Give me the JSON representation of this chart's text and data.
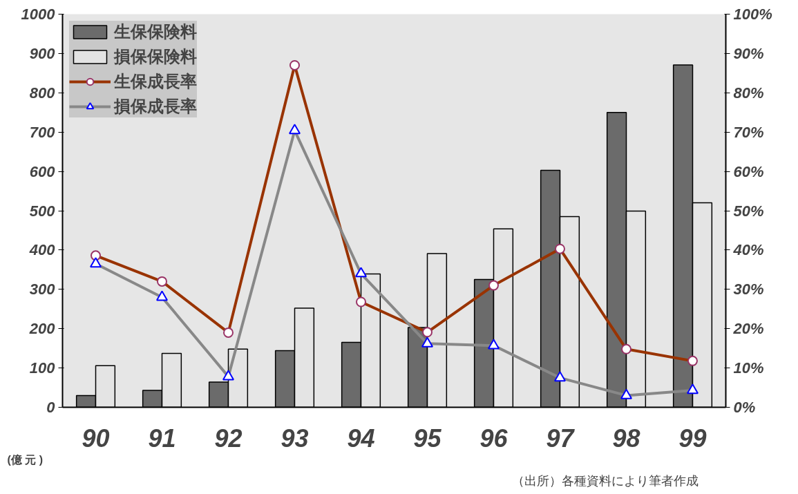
{
  "chart_data": {
    "type": "bar",
    "categories": [
      "90",
      "91",
      "92",
      "93",
      "94",
      "95",
      "96",
      "97",
      "98",
      "99"
    ],
    "series": [
      {
        "name": "生保保険料",
        "color": "#6b6b6b",
        "values": [
          30,
          43,
          64,
          144,
          165,
          203,
          325,
          603,
          750,
          871
        ]
      },
      {
        "name": "損保保険料",
        "color": "#e4e4e4",
        "values": [
          106,
          137,
          148,
          252,
          339,
          391,
          454,
          485,
          499,
          520
        ]
      },
      {
        "name": "生保成長率",
        "type": "line",
        "axis": "y2",
        "color": "#993300",
        "marker": "circle",
        "values": [
          38.6,
          32,
          19,
          87,
          26.8,
          19.1,
          31,
          40.3,
          14.8,
          11.8
        ]
      },
      {
        "name": "損保成長率",
        "type": "line",
        "axis": "y2",
        "color": "#888888",
        "marker": "triangle",
        "values": [
          36.5,
          28,
          7.8,
          70.4,
          34,
          16.2,
          15.7,
          7.5,
          3,
          4.3
        ]
      }
    ],
    "ylabel": "(億 元 )",
    "ylim": [
      0,
      1000
    ],
    "yticks": [
      0,
      100,
      200,
      300,
      400,
      500,
      600,
      700,
      800,
      900,
      1000
    ],
    "y2lim": [
      0,
      100
    ],
    "y2ticks": [
      {
        "value": 0,
        "label": "0%"
      },
      {
        "value": 10,
        "label": "10%"
      },
      {
        "value": 20,
        "label": "20%"
      },
      {
        "value": 30,
        "label": "30%"
      },
      {
        "value": 40,
        "label": "40%"
      },
      {
        "value": 50,
        "label": "50%"
      },
      {
        "value": 60,
        "label": "60%"
      },
      {
        "value": 70,
        "label": "70%"
      },
      {
        "value": 80,
        "label": "80%"
      },
      {
        "value": 90,
        "label": "90%"
      },
      {
        "value": 100,
        "label": "100%"
      }
    ],
    "annotations": [
      "（出所）各種資料により筆者作成"
    ],
    "legend": "top left"
  }
}
